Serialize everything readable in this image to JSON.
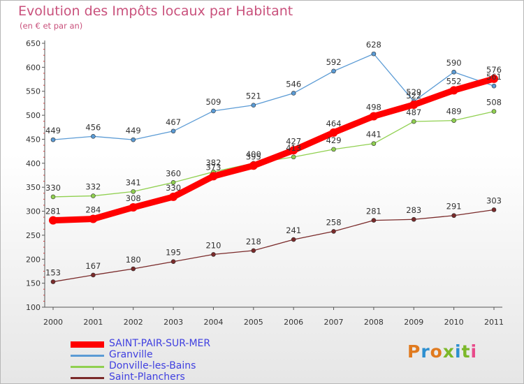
{
  "title": "Evolution des Impôts locaux par Habitant",
  "subtitle": "(en € et par an)",
  "logo": {
    "text": "Proxiti",
    "colors": [
      "#e07a1f",
      "#2d8fd0",
      "#e07a1f",
      "#7cb829",
      "#2d8fd0",
      "#7cb829",
      "#e84a8a"
    ]
  },
  "chart_data": {
    "type": "line",
    "title": "Evolution des Impôts locaux par Habitant",
    "subtitle": "(en € et par an)",
    "x": [
      "2000",
      "2001",
      "2002",
      "2003",
      "2004",
      "2005",
      "2006",
      "2007",
      "2008",
      "2009",
      "2010",
      "2011"
    ],
    "ylim": [
      100,
      650
    ],
    "yticks": [
      100,
      150,
      200,
      250,
      300,
      350,
      400,
      450,
      500,
      550,
      600,
      650
    ],
    "grid": false,
    "legend_position": "bottom-left",
    "series": [
      {
        "name": "SAINT-PAIR-SUR-MER",
        "color": "#ff0000",
        "values": [
          281,
          284,
          308,
          330,
          373,
          395,
          427,
          464,
          498,
          522,
          552,
          576
        ],
        "labels": [
          "281",
          "284",
          "308",
          "330",
          "373",
          "395",
          "427",
          "464",
          "498",
          "522",
          "552",
          "576"
        ]
      },
      {
        "name": "Granville",
        "color": "#5b9bd5",
        "values": [
          449,
          456,
          449,
          467,
          509,
          521,
          546,
          592,
          628,
          529,
          590,
          561
        ],
        "labels": [
          "449",
          "456",
          "449",
          "467",
          "509",
          "521",
          "546",
          "592",
          "628",
          "529",
          "590",
          "561"
        ]
      },
      {
        "name": "Donville-les-Bains",
        "color": "#90d050",
        "values": [
          330,
          332,
          341,
          360,
          382,
          400,
          413,
          429,
          441,
          487,
          489,
          508
        ],
        "labels": [
          "330",
          "332",
          "341",
          "360",
          "382",
          "400",
          "413",
          "429",
          "441",
          "487",
          "489",
          "508"
        ]
      },
      {
        "name": "Saint-Planchers",
        "color": "#7a2a2a",
        "values": [
          153,
          167,
          180,
          195,
          210,
          218,
          241,
          258,
          281,
          283,
          291,
          303
        ],
        "labels": [
          "153",
          "167",
          "180",
          "195",
          "210",
          "218",
          "241",
          "258",
          "281",
          "283",
          "291",
          "303"
        ]
      }
    ]
  }
}
